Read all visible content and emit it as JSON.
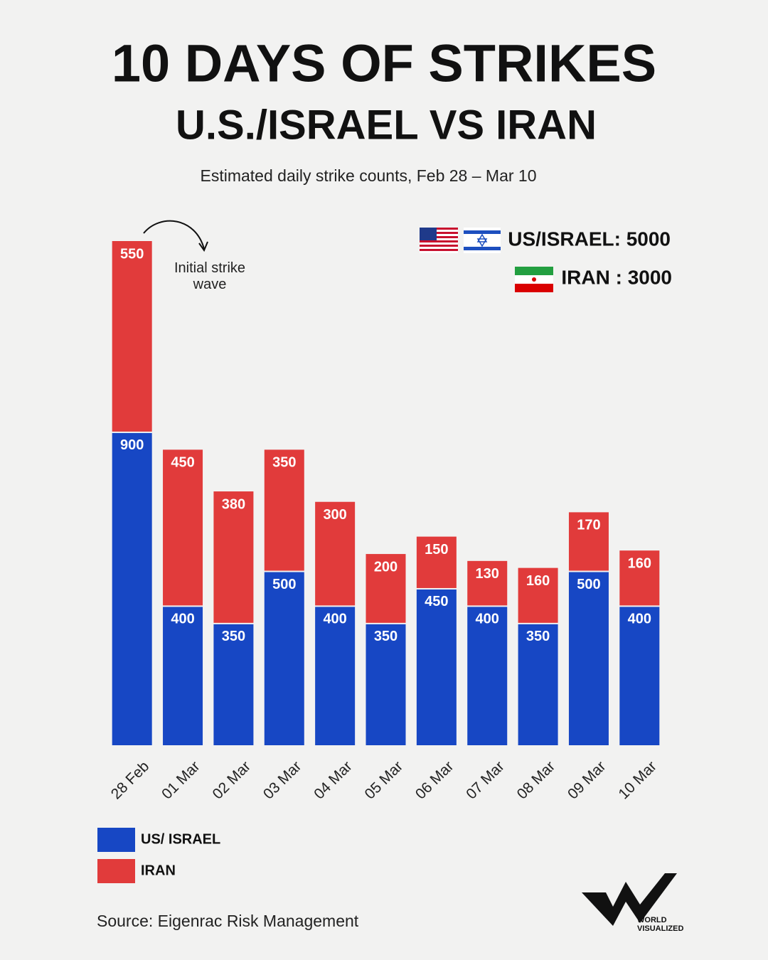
{
  "chart_data": {
    "type": "stacked_bar",
    "title": "10 DAYS OF STRIKES",
    "subtitle": "U.S./ISRAEL VS IRAN",
    "description": "Estimated daily strike counts, Feb 28 – Mar 10",
    "annotation": "Initial strike wave",
    "totals": [
      "US/ISRAEL: 5000",
      "IRAN : 3000"
    ],
    "categories": [
      "28 Feb",
      "01 Mar",
      "02 Mar",
      "03 Mar",
      "04 Mar",
      "05 Mar",
      "06 Mar",
      "07 Mar",
      "08 Mar",
      "09 Mar",
      "10 Mar"
    ],
    "series": [
      {
        "name": "US/ ISRAEL",
        "color": "#1747c4",
        "values": [
          900,
          400,
          350,
          500,
          400,
          350,
          450,
          400,
          350,
          500,
          400
        ]
      },
      {
        "name": "IRAN",
        "color": "#e13b3b",
        "values": [
          550,
          450,
          380,
          350,
          300,
          200,
          150,
          130,
          160,
          170,
          160
        ]
      }
    ],
    "ylim": [
      0,
      1450
    ],
    "source": "Source: Eigenrac Risk Management",
    "brand": "WORLD VISUALIZED"
  }
}
